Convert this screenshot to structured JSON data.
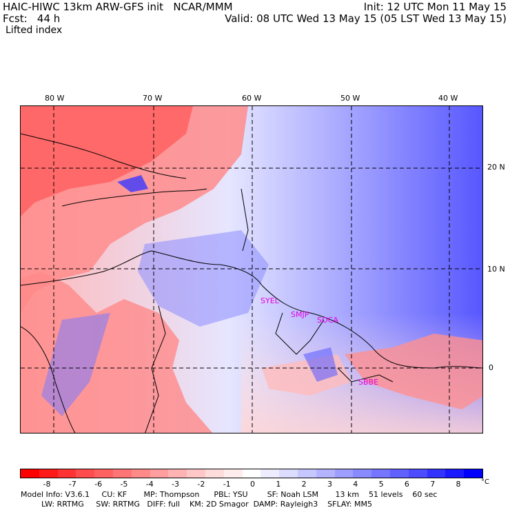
{
  "header": {
    "line1_left": "HAIC-HIWC 13km ARW-GFS init   NCAR/MMM",
    "line2_left": "Fcst:   44 h",
    "line3_left": "Lifted index",
    "line1_right": "Init: 12 UTC Mon 11 May 15",
    "line2_right": "Valid: 08 UTC Wed 13 May 15 (05 LST Wed 13 May 15)"
  },
  "map": {
    "lon_labels": [
      "80 W",
      "70 W",
      "60 W",
      "50 W",
      "40 W"
    ],
    "lat_labels": [
      "20 N",
      "10 N",
      "0"
    ],
    "stations": [
      "SYEL",
      "SMJP",
      "SOCA",
      "SBBE"
    ],
    "station_color": "#e000e0",
    "grid_line_style": "dashed"
  },
  "colorbar": {
    "labels": [
      "-8",
      "-7",
      "-6",
      "-5",
      "-4",
      "-3",
      "-2",
      "-1",
      "0",
      "1",
      "2",
      "3",
      "4",
      "5",
      "6",
      "7",
      "8"
    ],
    "unit": "°C",
    "colors": [
      "#ff0000",
      "#ff1a1a",
      "#ff3333",
      "#ff4d4d",
      "#ff6161",
      "#ff7575",
      "#ff8a8a",
      "#ff9e9e",
      "#ffb3b3",
      "#ffc7c7",
      "#ffdcdc",
      "#ffeded",
      "#ffffff",
      "#ededff",
      "#dcdcff",
      "#c7c7ff",
      "#b3b3ff",
      "#9e9eff",
      "#8a8aff",
      "#7575ff",
      "#6161ff",
      "#4d4dff",
      "#3333ff",
      "#1a1aff",
      "#0000ff"
    ]
  },
  "footer": {
    "line1": "Model Info: V3.6.1     CU: KF       MP: Thompson      PBL: YSU        SF: Noah LSM       13 km    51 levels    60 sec",
    "line2": "LW: RRTMG     SW: RRTMG   DIFF: full    KM: 2D Smagor  DAMP: Rayleigh3    SFLAY: MM5"
  }
}
